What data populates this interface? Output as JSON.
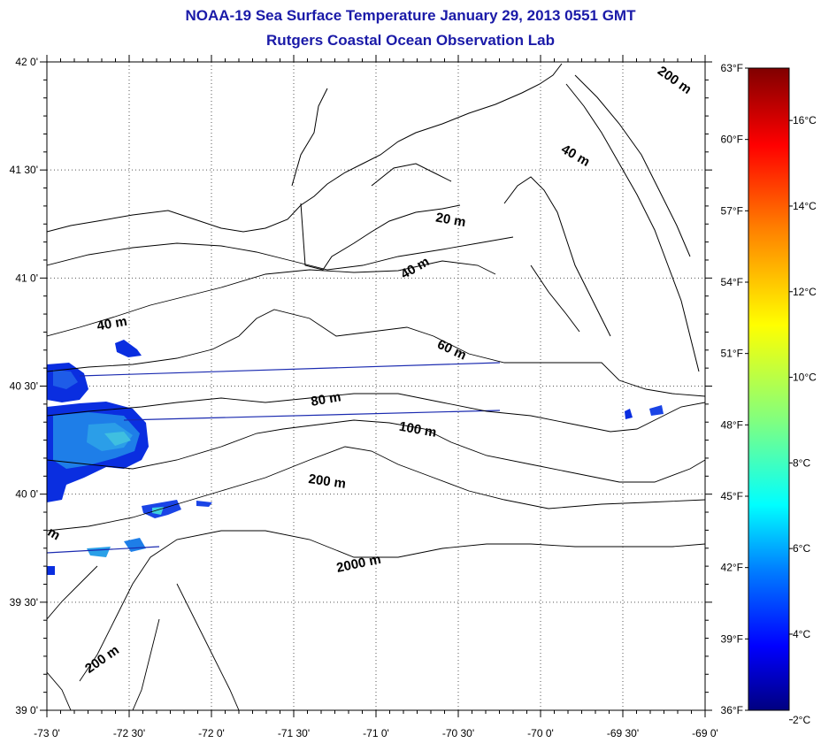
{
  "title": {
    "line1": "NOAA-19 Sea Surface Temperature January 29, 2013 0551 GMT",
    "line2": "Rutgers Coastal Ocean Observation Lab"
  },
  "axes": {
    "lat_labels": [
      "42 0'",
      "41 30'",
      "41 0'",
      "40 30'",
      "40 0'",
      "39 30'",
      "39 0'"
    ],
    "lon_labels": [
      "-73 0'",
      "-72 30'",
      "-72 0'",
      "-71 30'",
      "-71 0'",
      "-70 30'",
      "-70 0'",
      "-69 30'",
      "-69 0'"
    ],
    "lat_range": [
      39.0,
      42.0
    ],
    "lon_range": [
      -73.0,
      -69.0
    ],
    "grid": "dotted"
  },
  "contour_labels": [
    {
      "text": "200 m",
      "lon": -69.2,
      "lat": 41.9,
      "rot": 35
    },
    {
      "text": "40 m",
      "lon": -69.8,
      "lat": 41.55,
      "rot": 30
    },
    {
      "text": "20 m",
      "lon": -70.55,
      "lat": 41.25,
      "rot": 10
    },
    {
      "text": "40 m",
      "lon": -70.75,
      "lat": 41.03,
      "rot": -30
    },
    {
      "text": "40 m",
      "lon": -72.6,
      "lat": 40.77,
      "rot": -10
    },
    {
      "text": "60 m",
      "lon": -70.55,
      "lat": 40.65,
      "rot": 25
    },
    {
      "text": "80 m",
      "lon": -71.3,
      "lat": 40.42,
      "rot": -10
    },
    {
      "text": "100 m",
      "lon": -70.75,
      "lat": 40.28,
      "rot": 10
    },
    {
      "text": "200 m",
      "lon": -71.3,
      "lat": 40.04,
      "rot": 8
    },
    {
      "text": "2000 m",
      "lon": -71.1,
      "lat": 39.66,
      "rot": -12
    },
    {
      "text": "200 m",
      "lon": -72.65,
      "lat": 39.22,
      "rot": -35
    },
    {
      "text": "m",
      "lon": -72.97,
      "lat": 39.8,
      "rot": 30
    }
  ],
  "colorbar": {
    "f_labels": [
      "63°F",
      "60°F",
      "57°F",
      "54°F",
      "51°F",
      "48°F",
      "45°F",
      "42°F",
      "39°F",
      "36°F"
    ],
    "c_labels": [
      "16°C",
      "14°C",
      "12°C",
      "10°C",
      "8°C",
      "6°C",
      "4°C",
      "2°C"
    ],
    "c_values": [
      16,
      14,
      12,
      10,
      8,
      6,
      4,
      2
    ],
    "f_values": [
      63,
      60,
      57,
      54,
      51,
      48,
      45,
      42,
      39,
      36
    ],
    "f_range": [
      36,
      63
    ],
    "gradient": [
      "#800000",
      "#ff0000",
      "#ff8000",
      "#ffff00",
      "#80ff80",
      "#00ffff",
      "#0080ff",
      "#0000ff",
      "#000080"
    ]
  },
  "colors": {
    "title": "#1a1aa8",
    "sst_cold": "#0a2ee0",
    "sst_mid": "#1e7ee8",
    "sst_warm": "#2bb0e8",
    "track": "#1a2ab0"
  }
}
